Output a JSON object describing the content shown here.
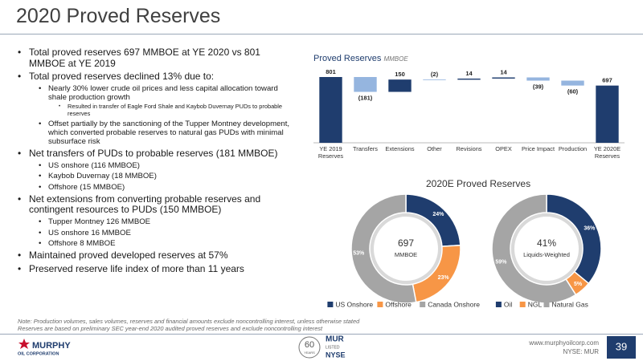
{
  "title": "2020 Proved Reserves",
  "bullets": [
    {
      "level": 1,
      "text": "Total proved reserves 697 MMBOE at YE 2020 vs 801 MMBOE at YE 2019"
    },
    {
      "level": 1,
      "text": "Total proved reserves declined 13% due to:"
    },
    {
      "level": 2,
      "text": "Nearly 30% lower crude oil prices and less capital allocation toward shale production growth"
    },
    {
      "level": 3,
      "text": "Resulted in transfer of Eagle Ford Shale and Kaybob Duvernay PUDs to probable reserves"
    },
    {
      "level": 2,
      "text": "Offset partially by the sanctioning of the Tupper Montney development, which converted probable reserves to natural gas PUDs with minimal subsurface risk"
    },
    {
      "level": 1,
      "text": "Net transfers of PUDs to probable reserves (181 MMBOE)"
    },
    {
      "level": 2,
      "text": "US onshore (116 MMBOE)"
    },
    {
      "level": 2,
      "text": "Kaybob Duvernay (18 MMBOE)"
    },
    {
      "level": 2,
      "text": "Offshore (15 MMBOE)"
    },
    {
      "level": 1,
      "text": "Net extensions from converting probable reserves and contingent resources to PUDs (150 MMBOE)"
    },
    {
      "level": 2,
      "text": "Tupper Montney 126 MMBOE"
    },
    {
      "level": 2,
      "text": "US onshore 16 MMBOE"
    },
    {
      "level": 2,
      "text": "Offshore 8 MMBOE"
    },
    {
      "level": 1,
      "text": "Maintained proved developed reserves at 57%"
    },
    {
      "level": 1,
      "text": "Preserved reserve life index of more than 11 years"
    }
  ],
  "donut_title": "2020E Proved Reserves",
  "note": [
    "Note: Production volumes, sales volumes, reserves and financial amounts exclude noncontrolling interest, unless otherwise stated",
    "Reserves are based on preliminary SEC year-end 2020 audited proved reserves and exclude noncontrolling interest"
  ],
  "footer": {
    "logo": "MURPHY",
    "logo_sub": "OIL CORPORATION",
    "anniversary": "60",
    "anniversary_sub": "YEARS",
    "ticker": "MUR",
    "listed": "LISTED",
    "exchange": "NYSE",
    "url": "www.murphyoilcorp.com",
    "ticker_line": "NYSE: MUR",
    "page": "39"
  },
  "chart_data": [
    {
      "type": "waterfall",
      "title": "Proved Reserves",
      "subtitle": "MMBOE",
      "categories": [
        "YE 2019 Reserves",
        "Transfers",
        "Extensions",
        "Other",
        "Revisions",
        "OPEX",
        "Price Impact",
        "Production",
        "YE 2020E Reserves"
      ],
      "values": [
        801,
        -181,
        150,
        -2,
        14,
        14,
        -39,
        -60,
        697
      ],
      "value_labels": [
        "801",
        "(181)",
        "150",
        "(2)",
        "14",
        "14",
        "(39)",
        "(60)",
        "697"
      ],
      "colors": {
        "total": "#1f3d6e",
        "increase": "#1f3d6e",
        "decrease": "#95b5df"
      }
    },
    {
      "type": "donut",
      "center_value": "697",
      "center_label": "MMBOE",
      "categories": [
        "US Onshore",
        "Offshore",
        "Canada Onshore"
      ],
      "values": [
        24,
        23,
        53
      ],
      "value_labels": [
        "24%",
        "23%",
        "53%"
      ],
      "colors": [
        "#1f3d6e",
        "#f79646",
        "#a5a5a5"
      ]
    },
    {
      "type": "donut",
      "center_value": "41%",
      "center_label": "Liquids-Weighted",
      "categories": [
        "Oil",
        "NGL",
        "Natural Gas"
      ],
      "values": [
        36,
        5,
        59
      ],
      "value_labels": [
        "36%",
        "5%",
        "59%"
      ],
      "colors": [
        "#1f3d6e",
        "#f79646",
        "#a5a5a5"
      ]
    }
  ]
}
